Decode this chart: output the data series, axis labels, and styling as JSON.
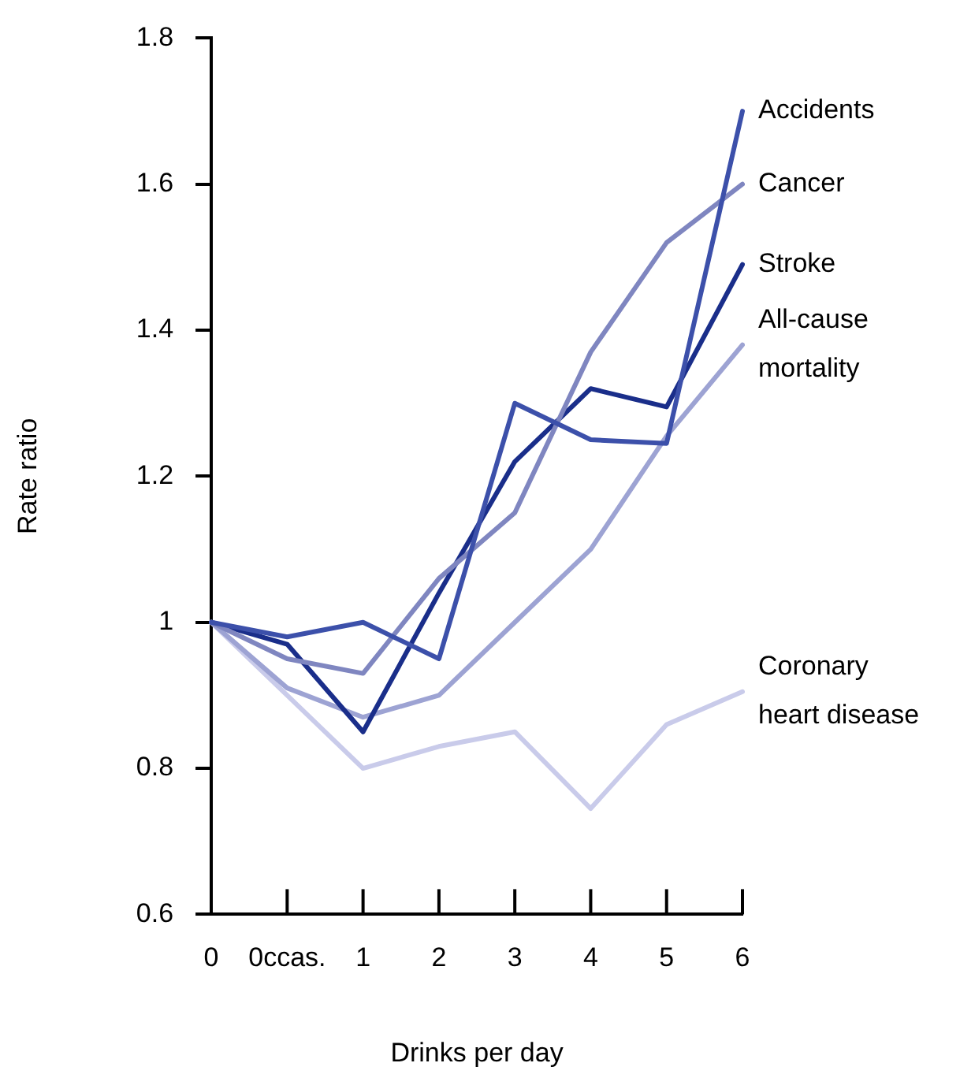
{
  "chart_data": {
    "type": "line",
    "xlabel": "Drinks per day",
    "ylabel": "Rate ratio",
    "categories": [
      "0",
      "0ccas.",
      "1",
      "2",
      "3",
      "4",
      "5",
      "6"
    ],
    "series": [
      {
        "name": "Accidents",
        "color": "#3c50aa",
        "values": [
          1.0,
          0.98,
          1.0,
          0.95,
          1.3,
          1.25,
          1.245,
          1.7
        ]
      },
      {
        "name": "Cancer",
        "color": "#7f86c0",
        "values": [
          1.0,
          0.95,
          0.93,
          1.06,
          1.15,
          1.37,
          1.52,
          1.6
        ]
      },
      {
        "name": "Stroke",
        "color": "#1a2e8a",
        "values": [
          1.0,
          0.97,
          0.85,
          1.04,
          1.22,
          1.32,
          1.295,
          1.49
        ]
      },
      {
        "name": "All-cause mortality",
        "color": "#9da3d3",
        "values": [
          1.0,
          0.91,
          0.87,
          0.9,
          1.0,
          1.1,
          1.255,
          1.38
        ]
      },
      {
        "name": "Coronary heart disease",
        "color": "#c9cbea",
        "values": [
          1.0,
          0.9,
          0.8,
          0.83,
          0.85,
          0.745,
          0.86,
          0.905
        ]
      }
    ],
    "ylim": [
      0.6,
      1.8
    ],
    "yticks": [
      0.6,
      0.8,
      1,
      1.2,
      1.4,
      1.6,
      1.8
    ],
    "grid": false,
    "legend": false,
    "marker": "none",
    "line_style": "solid"
  }
}
